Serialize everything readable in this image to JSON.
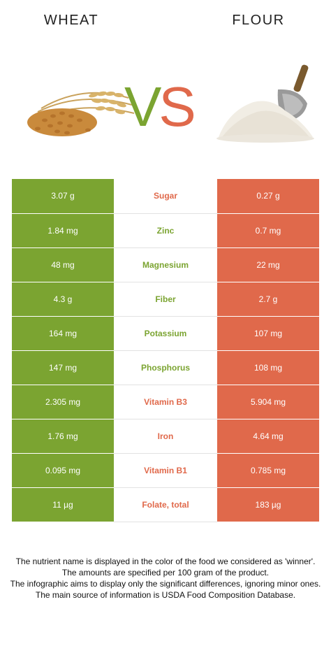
{
  "header": {
    "left_food": "WHEAT",
    "right_food": "FLOUR",
    "vs_v": "V",
    "vs_s": "S"
  },
  "colors": {
    "left_accent": "#7ba431",
    "right_accent": "#e0694b"
  },
  "icons": {
    "left_image": "wheat-grain-image",
    "right_image": "flour-scoop-image"
  },
  "rows": [
    {
      "left": "3.07 g",
      "nutrient": "Sugar",
      "right": "0.27 g",
      "winner": "right"
    },
    {
      "left": "1.84 mg",
      "nutrient": "Zinc",
      "right": "0.7 mg",
      "winner": "left"
    },
    {
      "left": "48 mg",
      "nutrient": "Magnesium",
      "right": "22 mg",
      "winner": "left"
    },
    {
      "left": "4.3 g",
      "nutrient": "Fiber",
      "right": "2.7 g",
      "winner": "left"
    },
    {
      "left": "164 mg",
      "nutrient": "Potassium",
      "right": "107 mg",
      "winner": "left"
    },
    {
      "left": "147 mg",
      "nutrient": "Phosphorus",
      "right": "108 mg",
      "winner": "left"
    },
    {
      "left": "2.305 mg",
      "nutrient": "Vitamin B3",
      "right": "5.904 mg",
      "winner": "right"
    },
    {
      "left": "1.76 mg",
      "nutrient": "Iron",
      "right": "4.64 mg",
      "winner": "right"
    },
    {
      "left": "0.095 mg",
      "nutrient": "Vitamin B1",
      "right": "0.785 mg",
      "winner": "right"
    },
    {
      "left": "11 µg",
      "nutrient": "Folate, total",
      "right": "183 µg",
      "winner": "right"
    }
  ],
  "footer": [
    "The nutrient name is displayed in the color of the food we considered as 'winner'.",
    "The amounts are specified per 100 gram of the product.",
    "The infographic aims to display only the significant differences, ignoring minor ones.",
    "The main source of information is USDA Food Composition Database."
  ]
}
